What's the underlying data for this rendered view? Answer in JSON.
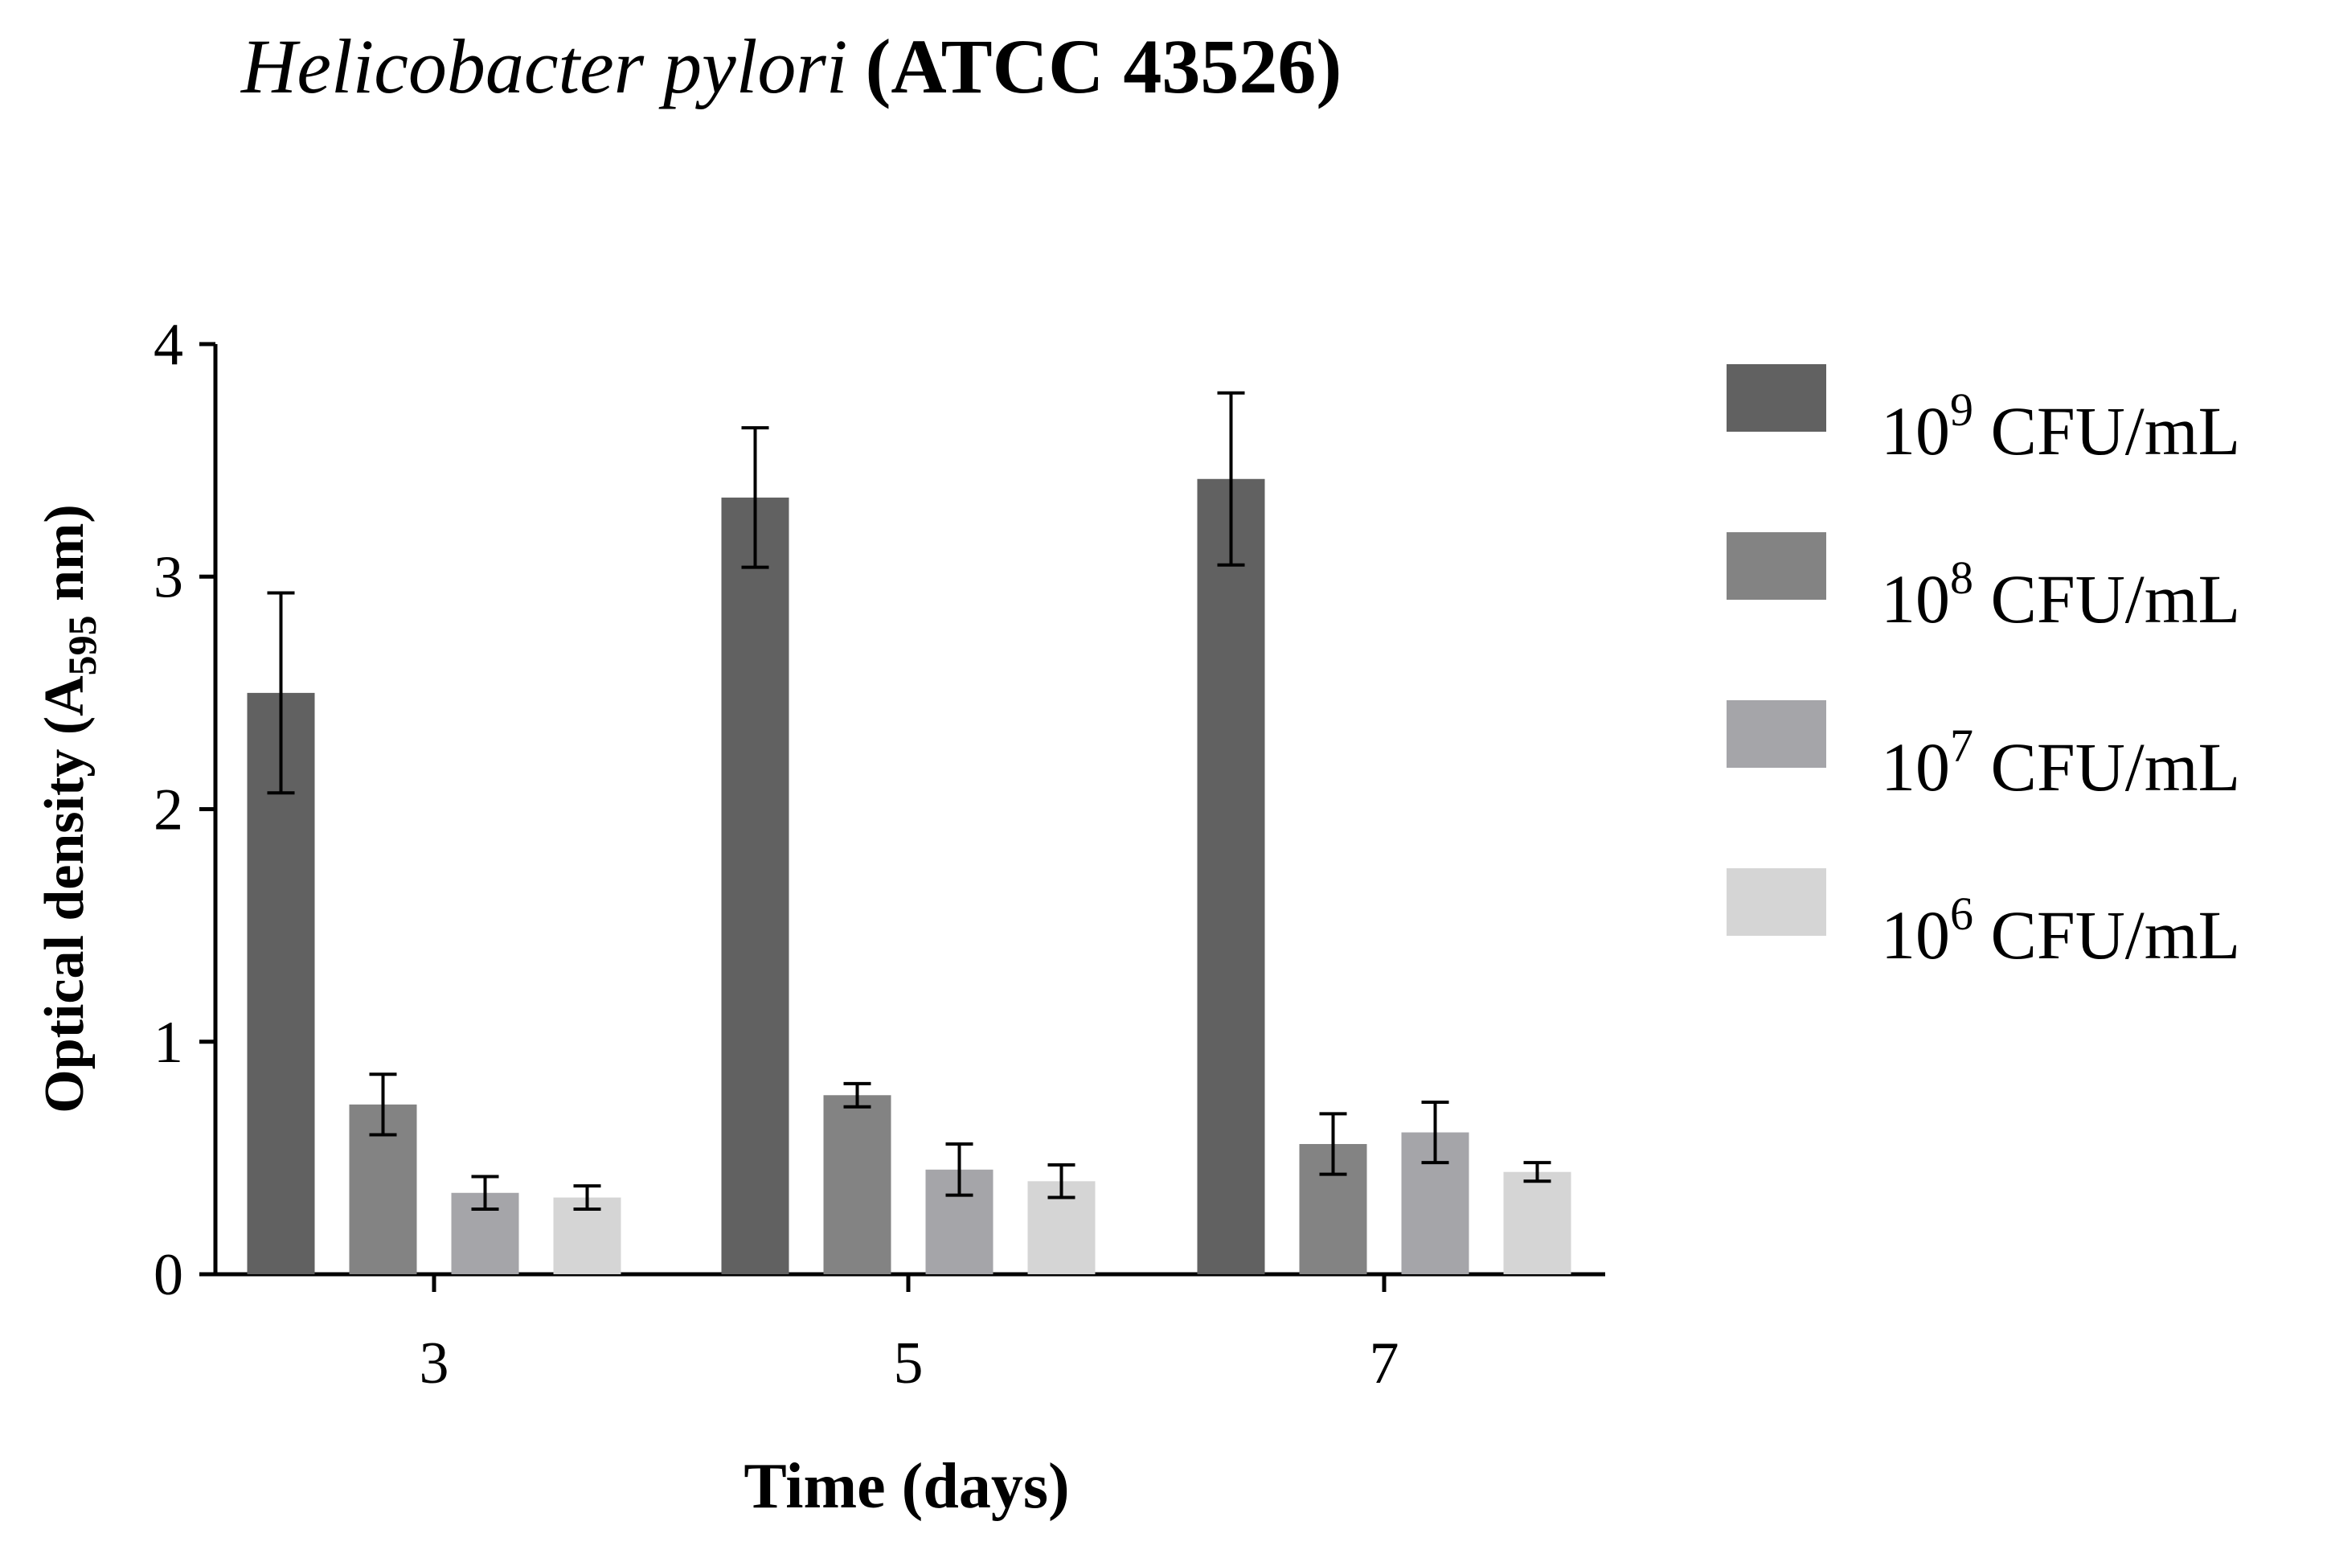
{
  "chart_data": {
    "type": "bar",
    "title": {
      "organism": "Helicobacter pylori",
      "strain": "(ATCC 43526)"
    },
    "xlabel": "Time (days)",
    "ylabel": {
      "prefix": "Optical density (A",
      "subscript": "595",
      "suffix": " nm)"
    },
    "categories": [
      "3",
      "5",
      "7"
    ],
    "ylim": [
      0,
      4
    ],
    "yticks": [
      "0",
      "1",
      "2",
      "3",
      "4"
    ],
    "grid": false,
    "legend_position": "right",
    "series": [
      {
        "name": {
          "base": "10",
          "exp": "9",
          "unit": " CFU/mL"
        },
        "color": "#616161",
        "values": [
          2.5,
          3.34,
          3.42
        ],
        "errors": [
          0.43,
          0.3,
          0.37
        ]
      },
      {
        "name": {
          "base": "10",
          "exp": "8",
          "unit": " CFU/mL"
        },
        "color": "#838383",
        "values": [
          0.73,
          0.77,
          0.56
        ],
        "errors": [
          0.13,
          0.05,
          0.13
        ]
      },
      {
        "name": {
          "base": "10",
          "exp": "7",
          "unit": " CFU/mL"
        },
        "color": "#a5a5a9",
        "values": [
          0.35,
          0.45,
          0.61
        ],
        "errors": [
          0.07,
          0.11,
          0.13
        ]
      },
      {
        "name": {
          "base": "10",
          "exp": "6",
          "unit": " CFU/mL"
        },
        "color": "#d5d5d5",
        "values": [
          0.33,
          0.4,
          0.44
        ],
        "errors": [
          0.05,
          0.07,
          0.04
        ]
      }
    ]
  }
}
